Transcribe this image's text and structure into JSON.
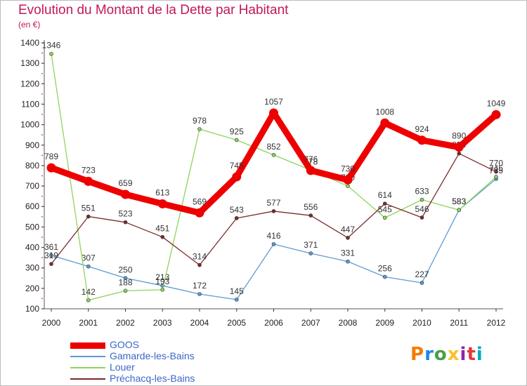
{
  "header": {
    "title": "Evolution du Montant de la Dette par Habitant",
    "unit": "(en €)"
  },
  "logo": {
    "text": "Proxiti",
    "colors": [
      "#f57c00",
      "#1e88e5",
      "#43a047",
      "#fbc02d",
      "#8e24aa",
      "#e53935",
      "#00acc1"
    ]
  },
  "chart_data": {
    "type": "line",
    "title": "Evolution du Montant de la Dette par Habitant",
    "subtitle": "(en €)",
    "x": [
      "2000",
      "2001",
      "2002",
      "2003",
      "2004",
      "2005",
      "2006",
      "2007",
      "2008",
      "2009",
      "2010",
      "2011",
      "2012"
    ],
    "ylim": [
      100,
      1400
    ],
    "yticks": [
      100,
      200,
      300,
      400,
      500,
      600,
      700,
      800,
      900,
      1000,
      1100,
      1200,
      1300,
      1400
    ],
    "grid": false,
    "legend_position": "bottom-left",
    "series": [
      {
        "name": "Gamarde-les-Bains",
        "color": "#5b9bd5",
        "width": 1.3,
        "marker": 5,
        "values": [
          361,
          307,
          250,
          213,
          172,
          145,
          416,
          371,
          331,
          256,
          227,
          583,
          735
        ],
        "labels": [
          "361",
          "307",
          "250",
          "213",
          "172",
          "145",
          "416",
          "371",
          "331",
          "256",
          "227",
          "583",
          "735"
        ]
      },
      {
        "name": "Louer",
        "color": "#8ed45c",
        "width": 1.3,
        "marker": 5,
        "values": [
          1346,
          142,
          188,
          193,
          978,
          925,
          852,
          778,
          700,
          545,
          633,
          583,
          745
        ],
        "labels": [
          "1346",
          "142",
          "188",
          "193",
          "978",
          "925",
          "852",
          "778",
          "700",
          "545",
          "633",
          "583",
          "745"
        ]
      },
      {
        "name": "Préchacq-les-Bains",
        "color": "#7b2a2a",
        "width": 1.3,
        "marker": 5,
        "values": [
          319,
          551,
          523,
          451,
          314,
          543,
          577,
          556,
          447,
          614,
          546,
          859,
          770
        ],
        "labels": [
          "319",
          "551",
          "523",
          "451",
          "314",
          "543",
          "577",
          "556",
          "447",
          "614",
          "546",
          "859",
          "770"
        ]
      },
      {
        "name": "GOOS",
        "color": "#ee0000",
        "width": 9,
        "marker": 13,
        "values": [
          789,
          723,
          659,
          613,
          569,
          745,
          1057,
          776,
          730,
          1008,
          924,
          890,
          1049
        ],
        "labels": [
          "789",
          "723",
          "659",
          "613",
          "569",
          "745",
          "1057",
          "776",
          "730",
          "1008",
          "924",
          "890",
          "1049"
        ]
      }
    ],
    "legend": [
      {
        "name": "GOOS",
        "color": "#ee0000",
        "width": 9
      },
      {
        "name": "Gamarde-les-Bains",
        "color": "#5b9bd5",
        "width": 2
      },
      {
        "name": "Louer",
        "color": "#8ed45c",
        "width": 2
      },
      {
        "name": "Préchacq-les-Bains",
        "color": "#7b2a2a",
        "width": 2
      }
    ]
  }
}
